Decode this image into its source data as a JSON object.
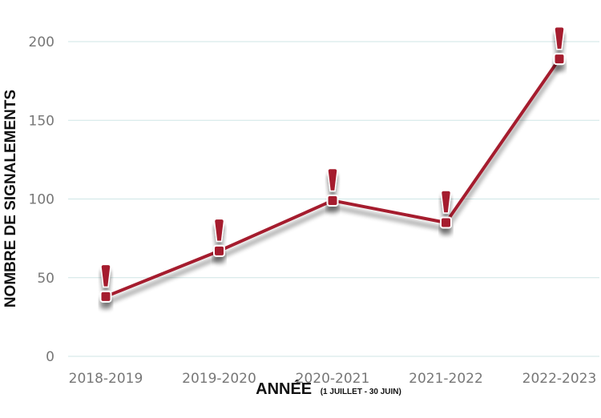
{
  "chart_data": {
    "type": "line",
    "categories": [
      "2018-2019",
      "2019-2020",
      "2020-2021",
      "2021-2022",
      "2022-2023"
    ],
    "values": [
      38,
      67,
      99,
      85,
      189
    ],
    "xlabel": "ANNÉE",
    "xlabel_note": "(1 JUILLET - 30 JUIN)",
    "ylabel": "NOMBRE DE SIGNALEMENTS",
    "ylim": [
      0,
      200
    ],
    "yticks": [
      "0",
      "50",
      "100",
      "150",
      "200"
    ],
    "grid": true,
    "line_color": "#a51f2d",
    "grid_color": "#cfe6e6",
    "marker": "exclamation"
  }
}
